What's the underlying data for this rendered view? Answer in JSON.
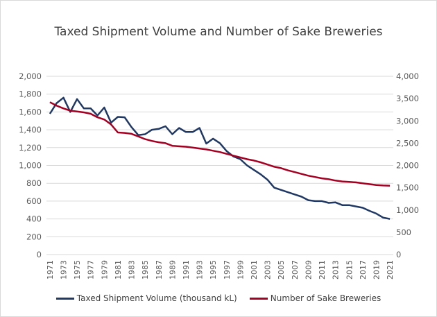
{
  "chart_data": {
    "type": "line",
    "title": "Taxed Shipment Volume and Number of Sake Breweries",
    "x": [
      1971,
      1972,
      1973,
      1974,
      1975,
      1976,
      1977,
      1978,
      1979,
      1980,
      1981,
      1982,
      1983,
      1984,
      1985,
      1986,
      1987,
      1988,
      1989,
      1990,
      1991,
      1992,
      1993,
      1994,
      1995,
      1996,
      1997,
      1998,
      1999,
      2000,
      2001,
      2002,
      2003,
      2004,
      2005,
      2006,
      2007,
      2008,
      2009,
      2010,
      2011,
      2012,
      2013,
      2014,
      2015,
      2016,
      2017,
      2018,
      2019,
      2020,
      2021
    ],
    "x_tick_labels": [
      "1971",
      "1973",
      "1975",
      "1977",
      "1979",
      "1981",
      "1983",
      "1985",
      "1987",
      "1989",
      "1991",
      "1993",
      "1995",
      "1997",
      "1999",
      "2001",
      "2003",
      "2005",
      "2007",
      "2009",
      "2011",
      "2013",
      "2015",
      "2017",
      "2019",
      "2021"
    ],
    "y_left": {
      "range": [
        0,
        2000
      ],
      "ticks": [
        "0",
        "200",
        "400",
        "600",
        "800",
        "1,000",
        "1,200",
        "1,400",
        "1,600",
        "1,800",
        "2,000"
      ]
    },
    "y_right": {
      "range": [
        0,
        4000
      ],
      "ticks": [
        "0",
        "500",
        "1,000",
        "1,500",
        "2,000",
        "2,500",
        "3,000",
        "3,500",
        "4,000"
      ]
    },
    "grid": true,
    "legend_position": "bottom",
    "series": [
      {
        "name": "Taxed Shipment Volume (thousand kL)",
        "axis": "left",
        "color": "#203864",
        "values": [
          1580,
          1700,
          1760,
          1600,
          1745,
          1640,
          1640,
          1560,
          1650,
          1480,
          1545,
          1540,
          1430,
          1340,
          1350,
          1400,
          1410,
          1440,
          1350,
          1420,
          1375,
          1375,
          1420,
          1245,
          1300,
          1250,
          1160,
          1100,
          1070,
          1000,
          950,
          900,
          840,
          750,
          725,
          700,
          675,
          650,
          610,
          600,
          600,
          580,
          585,
          555,
          555,
          540,
          525,
          490,
          460,
          415,
          400
        ]
      },
      {
        "name": "Number of Sake Breweries",
        "axis": "right",
        "color": "#a50021",
        "values": [
          3420,
          3340,
          3280,
          3230,
          3210,
          3190,
          3160,
          3080,
          3030,
          2920,
          2740,
          2730,
          2710,
          2650,
          2590,
          2550,
          2520,
          2500,
          2440,
          2430,
          2420,
          2400,
          2380,
          2360,
          2330,
          2300,
          2260,
          2220,
          2180,
          2140,
          2110,
          2070,
          2020,
          1970,
          1940,
          1890,
          1850,
          1810,
          1770,
          1740,
          1710,
          1690,
          1660,
          1640,
          1630,
          1620,
          1600,
          1580,
          1560,
          1550,
          1545
        ]
      }
    ]
  }
}
